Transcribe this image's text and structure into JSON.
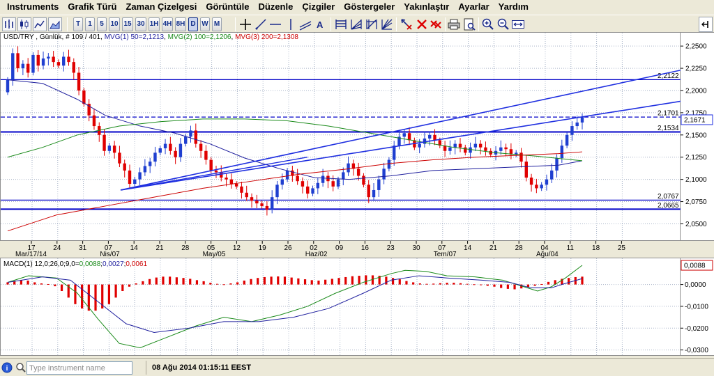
{
  "menu": [
    "Instruments",
    "Grafik Türü",
    "Zaman Çizelgesi",
    "Görüntüle",
    "Düzenle",
    "Çizgiler",
    "Göstergeler",
    "Yakınlaştır",
    "Ayarlar",
    "Yardım"
  ],
  "toolbar": {
    "timeframes": [
      "T",
      "1",
      "5",
      "10",
      "15",
      "30",
      "1H",
      "4H",
      "8H",
      "D",
      "W",
      "M"
    ],
    "active_timeframe": "D"
  },
  "main_legend": {
    "instrument": "USD/TRY , Günlük, # 109 / 401, ",
    "mva1": "MVG(1) 50=2,1213",
    "mva2": "MVG(2) 100=2,1206",
    "mva3": "MVG(3) 200=2,1308"
  },
  "macd_legend": {
    "label": "MACD(1) 12,0;26,0;9,0=",
    "v1": "0,0088",
    "sep1": ";",
    "v2": "0,0027",
    "sep2": ";",
    "v3": "0,0061"
  },
  "price_axis": [
    "2,2500",
    "2,2250",
    "2,2000",
    "2,1750",
    "2,1500",
    "2,1250",
    "2,1000",
    "2,0750",
    "2,0500"
  ],
  "macd_axis": [
    "0,0000",
    "-0,0100",
    "-0,0200",
    "-0,0300"
  ],
  "current_price": "2,1671",
  "current_macd": "0,0088",
  "levels": [
    "2,2122",
    "2,1701",
    "2,1534",
    "2,0767",
    "2,0665"
  ],
  "date_ticks": [
    "17",
    "24",
    "31",
    "07",
    "14",
    "21",
    "28",
    "05",
    "12",
    "19",
    "26",
    "02",
    "09",
    "16",
    "23",
    "30",
    "07",
    "14",
    "21",
    "28",
    "04",
    "11",
    "18",
    "25"
  ],
  "month_labels": [
    "Mar/17/14",
    "Nis/07",
    "May/05",
    "Haz/02",
    "Tem/07",
    "Ağu/04"
  ],
  "colors": {
    "bull": "#1f3fd0",
    "bear": "#e00000",
    "mva1": "#1f1f9e",
    "mva2": "#1a8a1a",
    "mva3": "#cc0000",
    "level_line": "#0000c8",
    "trend_line": "#1f2fe0"
  },
  "statusbar": {
    "search_placeholder": "Type instrument name",
    "timestamp": "08 Ağu 2014 01:15:11 EEST"
  }
}
